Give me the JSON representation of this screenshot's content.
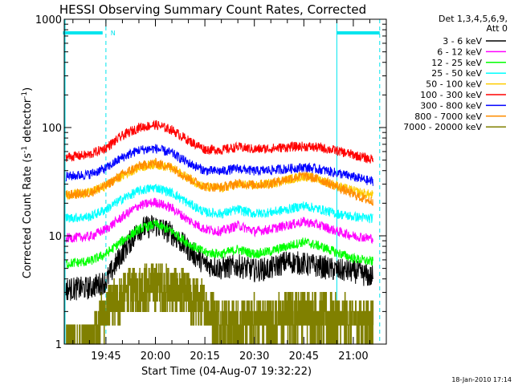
{
  "chart_data": {
    "type": "line",
    "title": "HESSI Observing Summary Count Rates, Corrected",
    "xlabel": "Start Time (04-Aug-07 19:32:22)",
    "ylabel_main": "Corrected Count Rate (s",
    "ylabel_sup1": "-1",
    "ylabel_mid": " detector",
    "ylabel_sup2": "-1",
    "ylabel_end": ")",
    "yscale": "log",
    "ylim": [
      1,
      1000
    ],
    "xlim": [
      "19:32:22",
      "21:10:00"
    ],
    "x_ticks": [
      "19:45",
      "20:00",
      "20:15",
      "20:30",
      "20:45",
      "21:00"
    ],
    "y_ticks": [
      "1",
      "10",
      "100",
      "1000"
    ],
    "footer": "18-Jan-2010 17:14",
    "legend": {
      "header1": "Det 1,3,4,5,6,9,",
      "header2": "Att 0",
      "position": "right"
    },
    "night_marker": "N",
    "series": [
      {
        "name": "3 - 6 keV",
        "color": "#000000",
        "points": [
          [
            "19:32",
            3.2
          ],
          [
            "19:40",
            3.3
          ],
          [
            "19:45",
            3.8
          ],
          [
            "19:50",
            7.0
          ],
          [
            "19:55",
            11.5
          ],
          [
            "20:00",
            12.5
          ],
          [
            "20:05",
            10.5
          ],
          [
            "20:10",
            7.5
          ],
          [
            "20:15",
            5.5
          ],
          [
            "20:20",
            5.0
          ],
          [
            "20:25",
            5.3
          ],
          [
            "20:30",
            4.8
          ],
          [
            "20:35",
            5.0
          ],
          [
            "20:40",
            5.8
          ],
          [
            "20:45",
            5.5
          ],
          [
            "20:50",
            5.2
          ],
          [
            "20:55",
            4.8
          ],
          [
            "21:00",
            4.7
          ],
          [
            "21:05",
            4.2
          ]
        ]
      },
      {
        "name": "6 - 12 keV",
        "color": "#ff00ff",
        "points": [
          [
            "19:32",
            9.5
          ],
          [
            "19:40",
            9.8
          ],
          [
            "19:45",
            11.5
          ],
          [
            "19:50",
            15.0
          ],
          [
            "19:55",
            19.0
          ],
          [
            "20:00",
            20.5
          ],
          [
            "20:05",
            18.0
          ],
          [
            "20:10",
            14.0
          ],
          [
            "20:15",
            11.5
          ],
          [
            "20:20",
            11.0
          ],
          [
            "20:25",
            12.5
          ],
          [
            "20:30",
            11.0
          ],
          [
            "20:35",
            11.5
          ],
          [
            "20:40",
            12.5
          ],
          [
            "20:45",
            13.5
          ],
          [
            "20:50",
            12.5
          ],
          [
            "20:55",
            11.0
          ],
          [
            "21:00",
            10.0
          ],
          [
            "21:05",
            9.5
          ]
        ]
      },
      {
        "name": "12 - 25 keV",
        "color": "#00ff00",
        "points": [
          [
            "19:32",
            5.5
          ],
          [
            "19:40",
            5.8
          ],
          [
            "19:45",
            6.8
          ],
          [
            "19:50",
            9.0
          ],
          [
            "19:55",
            11.5
          ],
          [
            "20:00",
            12.8
          ],
          [
            "20:05",
            11.0
          ],
          [
            "20:10",
            8.5
          ],
          [
            "20:15",
            7.0
          ],
          [
            "20:20",
            6.8
          ],
          [
            "20:25",
            7.5
          ],
          [
            "20:30",
            6.8
          ],
          [
            "20:35",
            7.2
          ],
          [
            "20:40",
            8.0
          ],
          [
            "20:45",
            8.8
          ],
          [
            "20:50",
            8.0
          ],
          [
            "20:55",
            7.0
          ],
          [
            "21:00",
            6.2
          ],
          [
            "21:05",
            5.8
          ]
        ]
      },
      {
        "name": "25 - 50 keV",
        "color": "#00ffff",
        "points": [
          [
            "19:32",
            14.5
          ],
          [
            "19:40",
            15.0
          ],
          [
            "19:45",
            17.5
          ],
          [
            "19:50",
            22.0
          ],
          [
            "19:55",
            26.0
          ],
          [
            "20:00",
            28.0
          ],
          [
            "20:05",
            25.0
          ],
          [
            "20:10",
            20.0
          ],
          [
            "20:15",
            16.5
          ],
          [
            "20:20",
            16.0
          ],
          [
            "20:25",
            17.5
          ],
          [
            "20:30",
            16.0
          ],
          [
            "20:35",
            16.5
          ],
          [
            "20:40",
            17.5
          ],
          [
            "20:45",
            19.0
          ],
          [
            "20:50",
            17.5
          ],
          [
            "20:55",
            16.0
          ],
          [
            "21:00",
            15.0
          ],
          [
            "21:05",
            14.5
          ]
        ]
      },
      {
        "name": "50 - 100 keV",
        "color": "#ffcc00",
        "points": [
          [
            "19:32",
            24.0
          ],
          [
            "19:40",
            25.0
          ],
          [
            "19:45",
            29.0
          ],
          [
            "19:50",
            36.0
          ],
          [
            "19:55",
            43.0
          ],
          [
            "20:00",
            46.0
          ],
          [
            "20:05",
            42.0
          ],
          [
            "20:10",
            34.0
          ],
          [
            "20:15",
            28.0
          ],
          [
            "20:20",
            27.5
          ],
          [
            "20:25",
            30.0
          ],
          [
            "20:30",
            29.0
          ],
          [
            "20:35",
            30.5
          ],
          [
            "20:40",
            33.0
          ],
          [
            "20:45",
            35.5
          ],
          [
            "20:50",
            33.0
          ],
          [
            "20:55",
            29.0
          ],
          [
            "21:00",
            26.0
          ],
          [
            "21:05",
            24.0
          ]
        ]
      },
      {
        "name": "100 - 300 keV",
        "color": "#ff0000",
        "points": [
          [
            "19:32",
            53.0
          ],
          [
            "19:40",
            56.0
          ],
          [
            "19:45",
            65.0
          ],
          [
            "19:50",
            84.0
          ],
          [
            "19:55",
            100.0
          ],
          [
            "20:00",
            106.0
          ],
          [
            "20:05",
            95.0
          ],
          [
            "20:10",
            76.0
          ],
          [
            "20:15",
            63.0
          ],
          [
            "20:20",
            62.0
          ],
          [
            "20:25",
            66.0
          ],
          [
            "20:30",
            63.0
          ],
          [
            "20:35",
            64.0
          ],
          [
            "20:40",
            66.0
          ],
          [
            "20:45",
            67.0
          ],
          [
            "20:50",
            65.0
          ],
          [
            "20:55",
            61.0
          ],
          [
            "21:00",
            56.0
          ],
          [
            "21:05",
            51.0
          ]
        ]
      },
      {
        "name": "300 - 800 keV",
        "color": "#0000ff",
        "points": [
          [
            "19:32",
            35.0
          ],
          [
            "19:40",
            37.0
          ],
          [
            "19:45",
            42.0
          ],
          [
            "19:50",
            53.0
          ],
          [
            "19:55",
            62.0
          ],
          [
            "20:00",
            64.0
          ],
          [
            "20:05",
            58.0
          ],
          [
            "20:10",
            47.0
          ],
          [
            "20:15",
            40.0
          ],
          [
            "20:20",
            39.5
          ],
          [
            "20:25",
            42.0
          ],
          [
            "20:30",
            39.5
          ],
          [
            "20:35",
            40.5
          ],
          [
            "20:40",
            41.5
          ],
          [
            "20:45",
            43.0
          ],
          [
            "20:50",
            41.0
          ],
          [
            "20:55",
            38.0
          ],
          [
            "21:00",
            35.0
          ],
          [
            "21:05",
            32.0
          ]
        ]
      },
      {
        "name": "800 - 7000 keV",
        "color": "#ff8c00",
        "points": [
          [
            "19:32",
            23.5
          ],
          [
            "19:40",
            25.0
          ],
          [
            "19:45",
            29.0
          ],
          [
            "19:50",
            37.0
          ],
          [
            "19:55",
            44.0
          ],
          [
            "20:00",
            47.0
          ],
          [
            "20:05",
            43.0
          ],
          [
            "20:10",
            34.0
          ],
          [
            "20:15",
            28.5
          ],
          [
            "20:20",
            28.0
          ],
          [
            "20:25",
            30.5
          ],
          [
            "20:30",
            29.5
          ],
          [
            "20:35",
            30.5
          ],
          [
            "20:40",
            33.5
          ],
          [
            "20:45",
            36.0
          ],
          [
            "20:50",
            33.0
          ],
          [
            "20:55",
            28.5
          ],
          [
            "21:00",
            24.0
          ],
          [
            "21:05",
            21.0
          ]
        ]
      },
      {
        "name": "7000 - 20000 keV",
        "color": "#808000",
        "points": [
          [
            "19:32",
            1.0
          ],
          [
            "19:40",
            1.0
          ],
          [
            "19:43",
            1.6
          ],
          [
            "19:46",
            2.2
          ],
          [
            "19:50",
            2.8
          ],
          [
            "19:55",
            3.3
          ],
          [
            "20:00",
            3.5
          ],
          [
            "20:05",
            3.2
          ],
          [
            "20:10",
            2.8
          ],
          [
            "20:15",
            2.2
          ],
          [
            "20:20",
            1.6
          ],
          [
            "20:25",
            1.5
          ],
          [
            "20:30",
            1.7
          ],
          [
            "20:35",
            1.6
          ],
          [
            "20:40",
            1.8
          ],
          [
            "20:45",
            2.0
          ],
          [
            "20:50",
            1.8
          ],
          [
            "20:55",
            1.7
          ],
          [
            "21:00",
            1.6
          ],
          [
            "21:05",
            1.6
          ]
        ]
      }
    ],
    "night_intervals": [
      [
        "19:32",
        "19:44"
      ],
      [
        "20:55",
        "21:08"
      ]
    ],
    "boundary_times": [
      "19:45",
      "20:55",
      "21:08"
    ],
    "grid": false
  },
  "colors": {
    "night_bar": "#00e5ee",
    "axis": "#000000"
  }
}
